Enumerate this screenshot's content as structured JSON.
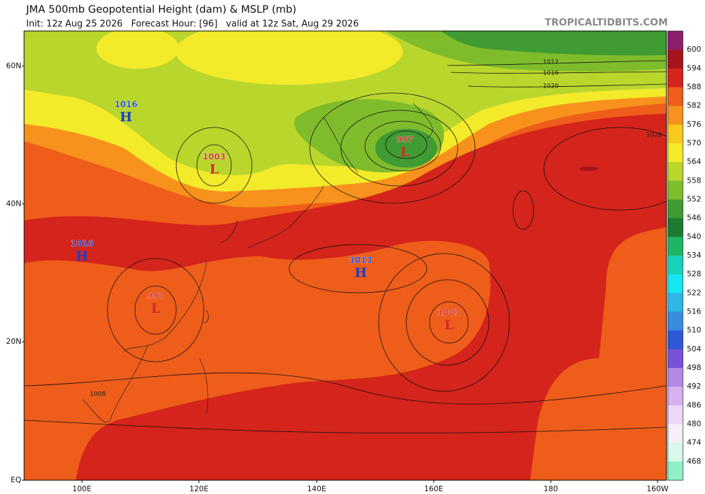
{
  "header": {
    "title": "JMA 500mb Geopotential Height (dam) & MSLP (mb)",
    "subtitle": "Init: 12z Aug 25 2026   Forecast Hour: [96]   valid at 12z Sat, Aug 29 2026",
    "watermark": "TROPICALTIDBITS.COM"
  },
  "map": {
    "lat_labels": [
      "60N",
      "40N",
      "20N",
      "EQ"
    ],
    "lon_labels": [
      "100E",
      "120E",
      "140E",
      "160E",
      "180",
      "160W"
    ],
    "pressure_centers": [
      {
        "value": 1016,
        "symbol": "H"
      },
      {
        "value": 1003,
        "symbol": "L"
      },
      {
        "value": 997,
        "symbol": "L"
      },
      {
        "value": 1016,
        "symbol": "H"
      },
      {
        "value": 997,
        "symbol": "L"
      },
      {
        "value": 1013,
        "symbol": "H"
      },
      {
        "value": 1003,
        "symbol": "L"
      }
    ],
    "contour_labels": [
      1012,
      1016,
      1020,
      1028,
      1008
    ]
  },
  "colorbar": {
    "labels": [
      600,
      594,
      588,
      582,
      576,
      570,
      564,
      558,
      552,
      546,
      540,
      534,
      528,
      522,
      516,
      510,
      504,
      498,
      492,
      486,
      480,
      474,
      468
    ]
  }
}
